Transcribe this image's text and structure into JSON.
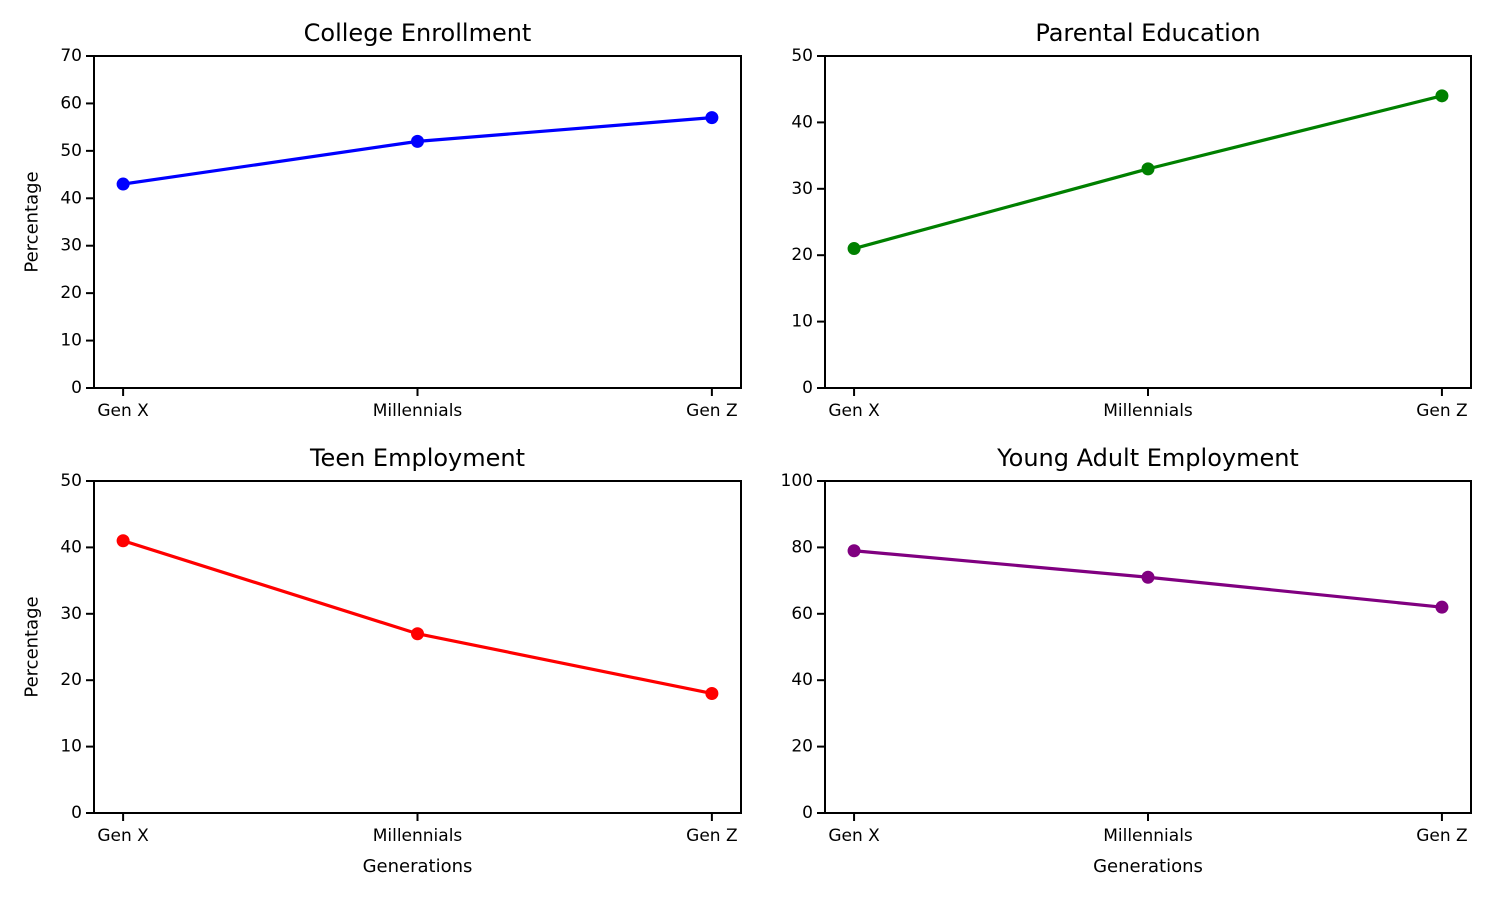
{
  "figure": {
    "background_color": "#ffffff",
    "text_color": "#000000",
    "axis_color": "#000000",
    "layout": "2x2 subplots",
    "legend": "none",
    "grid": false
  },
  "chart_data": [
    {
      "type": "line",
      "title": "College Enrollment",
      "categories": [
        "Gen X",
        "Millennials",
        "Gen Z"
      ],
      "series": [
        {
          "name": "College Enrollment",
          "values": [
            43,
            52,
            57
          ]
        }
      ],
      "color": "#0000ff",
      "xlabel": "",
      "ylabel": "Percentage",
      "ylim": [
        0,
        70
      ],
      "yticks": [
        0,
        10,
        20,
        30,
        40,
        50,
        60,
        70
      ],
      "marker": "circle",
      "grid": false,
      "legend_position": "none"
    },
    {
      "type": "line",
      "title": "Parental Education",
      "categories": [
        "Gen X",
        "Millennials",
        "Gen Z"
      ],
      "series": [
        {
          "name": "Parental Education",
          "values": [
            21,
            33,
            44
          ]
        }
      ],
      "color": "#008000",
      "xlabel": "",
      "ylabel": "",
      "ylim": [
        0,
        50
      ],
      "yticks": [
        0,
        10,
        20,
        30,
        40,
        50
      ],
      "marker": "circle",
      "grid": false,
      "legend_position": "none"
    },
    {
      "type": "line",
      "title": "Teen Employment",
      "categories": [
        "Gen X",
        "Millennials",
        "Gen Z"
      ],
      "series": [
        {
          "name": "Teen Employment",
          "values": [
            41,
            27,
            18
          ]
        }
      ],
      "color": "#ff0000",
      "xlabel": "Generations",
      "ylabel": "Percentage",
      "ylim": [
        0,
        50
      ],
      "yticks": [
        0,
        10,
        20,
        30,
        40,
        50
      ],
      "marker": "circle",
      "grid": false,
      "legend_position": "none"
    },
    {
      "type": "line",
      "title": "Young Adult Employment",
      "categories": [
        "Gen X",
        "Millennials",
        "Gen Z"
      ],
      "series": [
        {
          "name": "Young Adult Employment",
          "values": [
            79,
            71,
            62
          ]
        }
      ],
      "color": "#800080",
      "xlabel": "Generations",
      "ylabel": "",
      "ylim": [
        0,
        100
      ],
      "yticks": [
        0,
        20,
        40,
        60,
        80,
        100
      ],
      "marker": "circle",
      "grid": false,
      "legend_position": "none"
    }
  ]
}
